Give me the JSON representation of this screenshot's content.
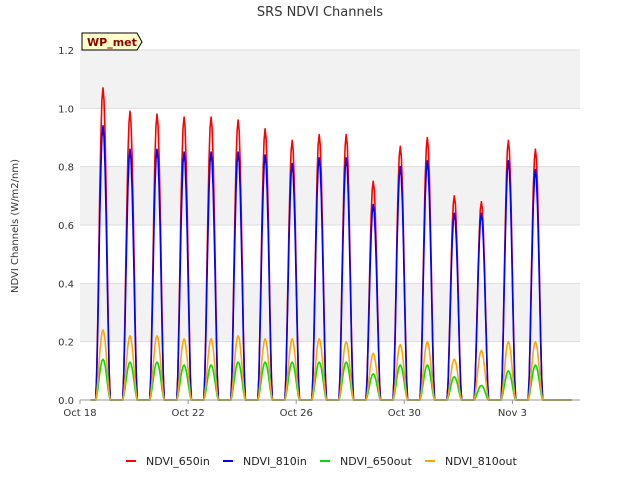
{
  "chart_data": {
    "type": "line",
    "title": "SRS NDVI Channels",
    "xlabel": "",
    "ylabel": "NDVI Channels (W/m2/nm)",
    "xlim": [
      0,
      18.5
    ],
    "ylim": [
      0,
      1.2
    ],
    "yticks": [
      0.0,
      0.2,
      0.4,
      0.6,
      0.8,
      1.0,
      1.2
    ],
    "ytick_labels": [
      "0.0",
      "0.2",
      "0.4",
      "0.6",
      "0.8",
      "1.0",
      "1.2"
    ],
    "xticks": [
      0,
      4,
      8,
      12,
      16
    ],
    "xtick_labels": [
      "Oct 18",
      "Oct 22",
      "Oct 26",
      "Oct 30",
      "Nov 3"
    ],
    "grid": "horizontal bands",
    "legend_position": "bottom",
    "annotation": "WP_met",
    "day_centers": [
      0.85,
      1.85,
      2.85,
      3.85,
      4.85,
      5.85,
      6.85,
      7.85,
      8.85,
      9.85,
      10.85,
      11.85,
      12.85,
      13.85,
      14.85,
      15.85,
      16.85,
      17.85
    ],
    "series": [
      {
        "name": "NDVI_650in",
        "color": "#ff0000",
        "values": [
          1.07,
          0.99,
          0.98,
          0.97,
          0.97,
          0.96,
          0.93,
          0.89,
          0.91,
          0.91,
          0.75,
          0.87,
          0.9,
          0.7,
          0.68,
          0.89,
          0.86,
          0.0
        ]
      },
      {
        "name": "NDVI_810in",
        "color": "#0000ff",
        "values": [
          0.94,
          0.86,
          0.86,
          0.85,
          0.85,
          0.85,
          0.84,
          0.81,
          0.83,
          0.83,
          0.67,
          0.8,
          0.82,
          0.64,
          0.64,
          0.82,
          0.79,
          0.0
        ]
      },
      {
        "name": "NDVI_650out",
        "color": "#00dd00",
        "values": [
          0.14,
          0.13,
          0.13,
          0.12,
          0.12,
          0.13,
          0.13,
          0.13,
          0.13,
          0.13,
          0.09,
          0.12,
          0.12,
          0.08,
          0.05,
          0.1,
          0.12,
          0.0
        ]
      },
      {
        "name": "NDVI_810out",
        "color": "#ffa500",
        "values": [
          0.24,
          0.22,
          0.22,
          0.21,
          0.21,
          0.22,
          0.21,
          0.21,
          0.21,
          0.2,
          0.16,
          0.19,
          0.2,
          0.14,
          0.17,
          0.2,
          0.2,
          0.0
        ]
      }
    ]
  }
}
